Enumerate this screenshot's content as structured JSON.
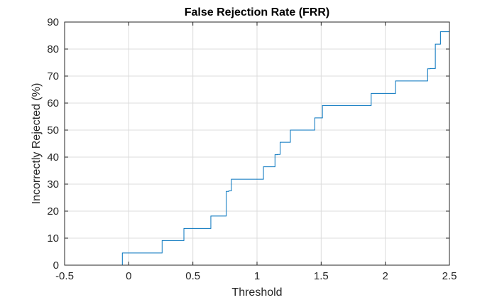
{
  "chart_data": {
    "type": "line",
    "title": "False Rejection Rate (FRR)",
    "xlabel": "Threshold",
    "ylabel": "Incorrectly Rejected (%)",
    "xlim": [
      -0.5,
      2.5
    ],
    "ylim": [
      0,
      90
    ],
    "xticks": [
      -0.5,
      0,
      0.5,
      1,
      1.5,
      2,
      2.5
    ],
    "xtick_labels": [
      "-0.5",
      "0",
      "0.5",
      "1",
      "1.5",
      "2",
      "2.5"
    ],
    "yticks": [
      0,
      10,
      20,
      30,
      40,
      50,
      60,
      70,
      80,
      90
    ],
    "ytick_labels": [
      "0",
      "10",
      "20",
      "30",
      "40",
      "50",
      "60",
      "70",
      "80",
      "90"
    ],
    "grid": true,
    "step": true,
    "series": [
      {
        "color": "#0072BD",
        "x": [
          -0.5,
          -0.05,
          0.26,
          0.43,
          0.64,
          0.76,
          0.78,
          0.8,
          1.05,
          1.14,
          1.16,
          1.18,
          1.26,
          1.45,
          1.51,
          1.89,
          2.08,
          2.33,
          2.35,
          2.39,
          2.43,
          2.5
        ],
        "y": [
          0,
          4.5,
          9.1,
          13.6,
          18.2,
          27.3,
          27.5,
          31.8,
          36.4,
          40.9,
          41.0,
          45.5,
          50.0,
          54.5,
          59.1,
          63.6,
          68.2,
          72.7,
          72.8,
          81.8,
          86.4,
          86.4
        ]
      }
    ]
  }
}
